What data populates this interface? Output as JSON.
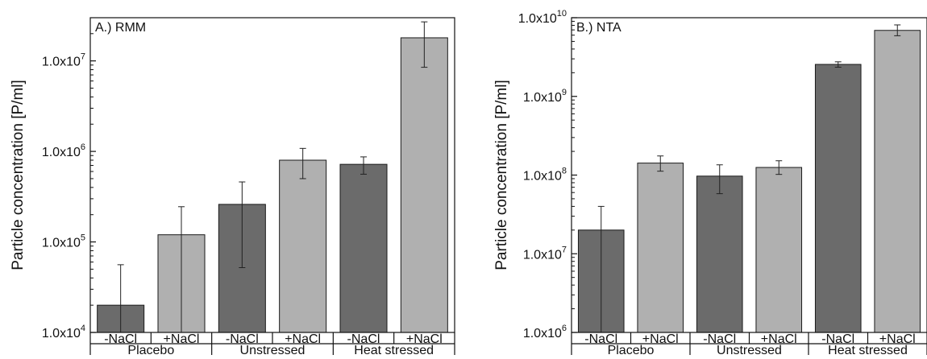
{
  "chart_data": [
    {
      "type": "bar",
      "title": "A.) RMM",
      "ylabel": "Particle concentration [P/ml]",
      "yscale": "log",
      "ylim": [
        10000,
        30000000
      ],
      "yticks": [
        {
          "mant": "1.0x10",
          "exp": "4",
          "value": 10000
        },
        {
          "mant": "1.0x10",
          "exp": "5",
          "value": 100000
        },
        {
          "mant": "1.0x10",
          "exp": "6",
          "value": 1000000
        },
        {
          "mant": "1.0x10",
          "exp": "7",
          "value": 10000000
        }
      ],
      "groups": [
        "Placebo",
        "Unstressed",
        "Heat stressed"
      ],
      "categories": [
        "-NaCl",
        "+NaCl",
        "-NaCl",
        "+NaCl",
        "-NaCl",
        "+NaCl"
      ],
      "values": [
        20000,
        120000,
        260000,
        800000,
        720000,
        18000000
      ],
      "err_low": [
        10000,
        10000,
        52000,
        500000,
        560000,
        8500000
      ],
      "err_high": [
        56000,
        245000,
        460000,
        1080000,
        870000,
        27000000
      ],
      "colors": [
        "#6b6b6b",
        "#b0b0b0",
        "#6b6b6b",
        "#b0b0b0",
        "#6b6b6b",
        "#b0b0b0"
      ]
    },
    {
      "type": "bar",
      "title": "B.) NTA",
      "ylabel": "Particle concentration [P/ml]",
      "yscale": "log",
      "ylim": [
        1000000,
        10000000000
      ],
      "yticks": [
        {
          "mant": "1.0x10",
          "exp": "6",
          "value": 1000000
        },
        {
          "mant": "1.0x10",
          "exp": "7",
          "value": 10000000
        },
        {
          "mant": "1.0x10",
          "exp": "8",
          "value": 100000000
        },
        {
          "mant": "1.0x10",
          "exp": "9",
          "value": 1000000000
        },
        {
          "mant": "1.0x10",
          "exp": "10",
          "value": 10000000000
        }
      ],
      "groups": [
        "Placebo",
        "Unstressed",
        "Heat stressed"
      ],
      "categories": [
        "-NaCl",
        "+NaCl",
        "-NaCl",
        "+NaCl",
        "-NaCl",
        "+NaCl"
      ],
      "values": [
        20000000,
        142000000,
        97000000,
        125000000,
        2550000000,
        6900000000
      ],
      "err_low": [
        1000000,
        112000000,
        58000000,
        102000000,
        2350000000,
        5900000000
      ],
      "err_high": [
        40000000,
        175000000,
        135000000,
        152000000,
        2750000000,
        8100000000
      ],
      "colors": [
        "#6b6b6b",
        "#b0b0b0",
        "#6b6b6b",
        "#b0b0b0",
        "#6b6b6b",
        "#b0b0b0"
      ]
    }
  ]
}
